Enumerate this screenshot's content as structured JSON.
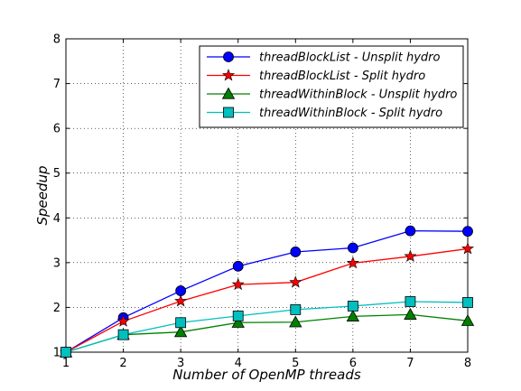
{
  "chart_data": {
    "type": "line",
    "title": "",
    "xlabel": "Number of OpenMP threads",
    "ylabel": "Speedup",
    "xlim": [
      1,
      8
    ],
    "ylim": [
      1,
      8
    ],
    "xticks": [
      "1",
      "2",
      "3",
      "4",
      "5",
      "6",
      "7",
      "8"
    ],
    "yticks": [
      "1",
      "2",
      "3",
      "4",
      "5",
      "6",
      "7",
      "8"
    ],
    "grid": true,
    "legend_position": "top-right",
    "x": [
      1,
      2,
      3,
      4,
      5,
      6,
      7,
      8
    ],
    "series": [
      {
        "name": "threadBlockList - Unsplit hydro",
        "color": "#0000ff",
        "marker": "circle",
        "values": [
          1.0,
          1.77,
          2.37,
          2.92,
          3.24,
          3.33,
          3.71,
          3.7
        ]
      },
      {
        "name": "threadBlockList - Split hydro",
        "color": "#ff0000",
        "marker": "star",
        "values": [
          1.0,
          1.69,
          2.14,
          2.51,
          2.56,
          2.99,
          3.14,
          3.31
        ]
      },
      {
        "name": "threadWithinBlock - Unsplit hydro",
        "color": "#008000",
        "marker": "triangle",
        "values": [
          1.0,
          1.39,
          1.45,
          1.66,
          1.67,
          1.8,
          1.84,
          1.7
        ]
      },
      {
        "name": "threadWithinBlock - Split hydro",
        "color": "#00bfbf",
        "marker": "square",
        "values": [
          1.0,
          1.39,
          1.66,
          1.81,
          1.95,
          2.03,
          2.13,
          2.11
        ]
      }
    ]
  }
}
